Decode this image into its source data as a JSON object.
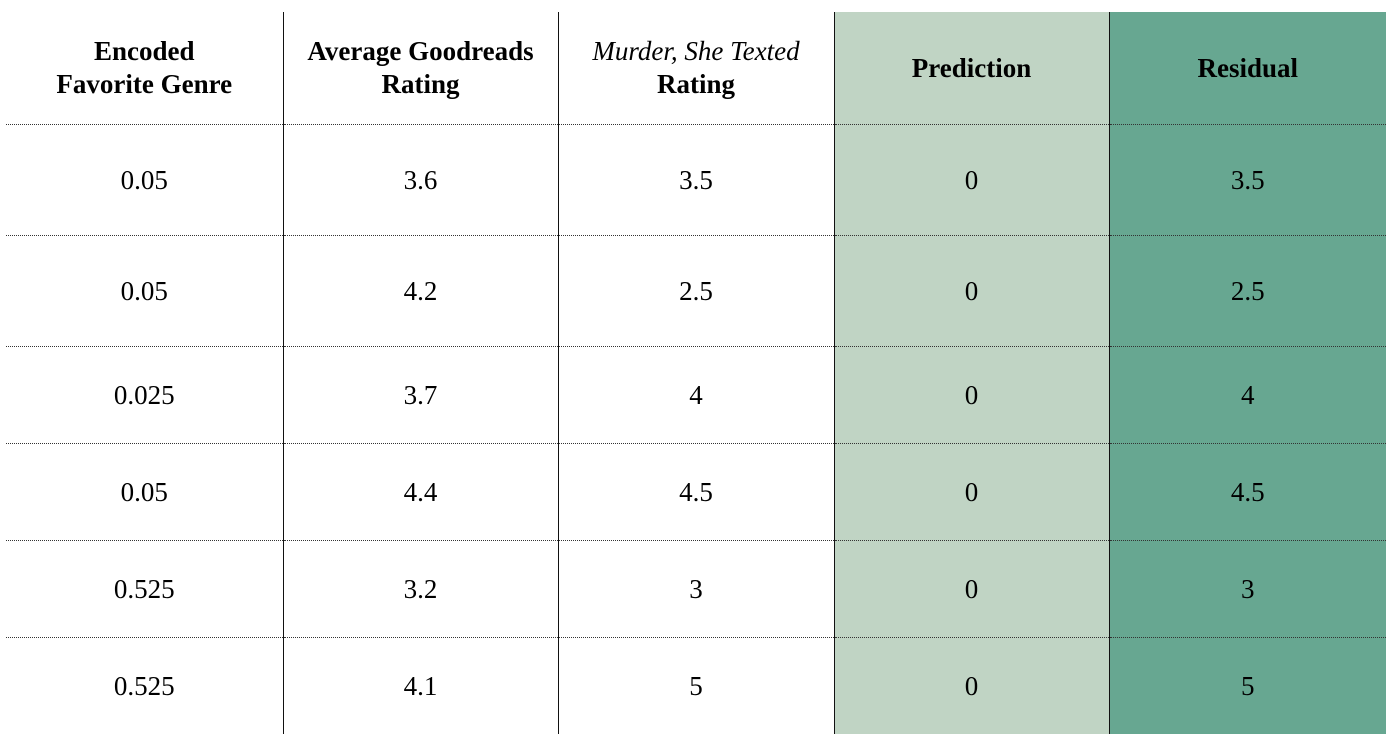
{
  "chart_data": {
    "type": "table",
    "columns": [
      {
        "key": "encoded_genre",
        "lines": [
          {
            "text": "Encoded",
            "italic": false
          },
          {
            "text": "Favorite Genre",
            "italic": false
          }
        ]
      },
      {
        "key": "avg_goodreads",
        "lines": [
          {
            "text": "Average Goodreads",
            "italic": false
          },
          {
            "text": "Rating",
            "italic": false
          }
        ]
      },
      {
        "key": "mst_rating",
        "lines": [
          {
            "text": "Murder, She Texted",
            "italic": true
          },
          {
            "text": "Rating",
            "italic": false
          }
        ]
      },
      {
        "key": "prediction",
        "lines": [
          {
            "text": "Prediction",
            "italic": false
          }
        ]
      },
      {
        "key": "residual",
        "lines": [
          {
            "text": "Residual",
            "italic": false
          }
        ]
      }
    ],
    "rows": [
      [
        "0.05",
        "3.6",
        "3.5",
        "0",
        "3.5"
      ],
      [
        "0.05",
        "4.2",
        "2.5",
        "0",
        "2.5"
      ],
      [
        "0.025",
        "3.7",
        "4",
        "0",
        "4"
      ],
      [
        "0.05",
        "4.4",
        "4.5",
        "0",
        "4.5"
      ],
      [
        "0.525",
        "3.2",
        "3",
        "0",
        "3"
      ],
      [
        "0.525",
        "4.1",
        "5",
        "0",
        "5"
      ]
    ],
    "column_colors": {
      "prediction": "#c0d4c4",
      "residual": "#67a791"
    }
  }
}
